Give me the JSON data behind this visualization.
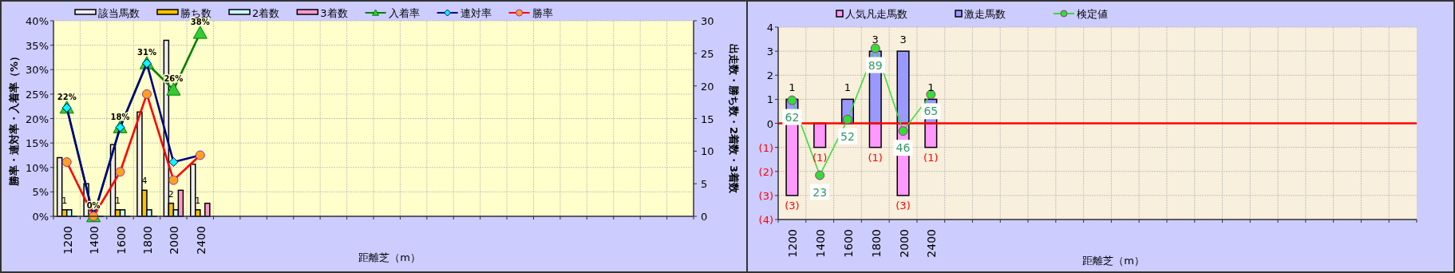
{
  "chart_data": [
    {
      "type": "bar",
      "xlabel": "距離芝（m）",
      "ylabel": "勝率・連対率・入着率（%）",
      "y2label": "出走数・勝ち数・2着数・3着数",
      "categories": [
        "1200",
        "1400",
        "1600",
        "1800",
        "2000",
        "2400",
        null,
        null,
        null,
        null,
        null,
        null,
        null,
        null,
        null,
        null,
        null,
        null,
        null,
        null,
        null,
        null,
        null,
        null
      ],
      "series": [
        {
          "name": "該当馬数",
          "axis": "y2",
          "color": "#eeeeee",
          "values": [
            9,
            5,
            11,
            16,
            27,
            8,
            null,
            null,
            null,
            null,
            null,
            null,
            null,
            null,
            null,
            null,
            null,
            null,
            null,
            null,
            null,
            null,
            null,
            null
          ]
        },
        {
          "name": "勝ち数",
          "axis": "y2",
          "color": "#ffc000",
          "values": [
            1,
            0,
            1,
            4,
            2,
            1,
            null,
            null,
            null,
            null,
            null,
            null,
            null,
            null,
            null,
            null,
            null,
            null,
            null,
            null,
            null,
            null,
            null,
            null
          ],
          "value_labels": [
            "1",
            null,
            "1",
            "4",
            "2",
            "1",
            null,
            null,
            null,
            null,
            null,
            null,
            null,
            null,
            null,
            null,
            null,
            null,
            null,
            null,
            null,
            null,
            null,
            null
          ]
        },
        {
          "name": "2着数",
          "axis": "y2",
          "color": "#ccffff",
          "values": [
            1,
            0,
            1,
            1,
            1,
            0,
            null,
            null,
            null,
            null,
            null,
            null,
            null,
            null,
            null,
            null,
            null,
            null,
            null,
            null,
            null,
            null,
            null,
            null
          ]
        },
        {
          "name": "3着数",
          "axis": "y2",
          "color": "#ff99cc",
          "values": [
            0,
            0,
            0,
            0,
            4,
            2,
            null,
            null,
            null,
            null,
            null,
            null,
            null,
            null,
            null,
            null,
            null,
            null,
            null,
            null,
            null,
            null,
            null,
            null
          ]
        },
        {
          "name": "入着率",
          "type": "line",
          "color": "#008000",
          "marker": "triangle",
          "values": [
            22.2,
            0,
            18.2,
            31.3,
            25.9,
            37.5,
            null,
            null,
            null,
            null,
            null,
            null,
            null,
            null,
            null,
            null,
            null,
            null,
            null,
            null,
            null,
            null,
            null,
            null
          ],
          "value_labels": [
            "22%",
            "0%",
            "18%",
            "31%",
            "26%",
            "38%",
            null,
            null,
            null,
            null,
            null,
            null,
            null,
            null,
            null,
            null,
            null,
            null,
            null,
            null,
            null,
            null,
            null,
            null
          ]
        },
        {
          "name": "連対率",
          "type": "line",
          "color": "#000080",
          "marker": "diamond",
          "values": [
            22.2,
            0,
            18.2,
            31.3,
            11.1,
            12.5,
            null,
            null,
            null,
            null,
            null,
            null,
            null,
            null,
            null,
            null,
            null,
            null,
            null,
            null,
            null,
            null,
            null,
            null
          ]
        },
        {
          "name": "勝率",
          "type": "line",
          "color": "#ff0000",
          "marker": "circle",
          "values": [
            11.1,
            0,
            9.1,
            25,
            7.4,
            12.5,
            null,
            null,
            null,
            null,
            null,
            null,
            null,
            null,
            null,
            null,
            null,
            null,
            null,
            null,
            null,
            null,
            null,
            null
          ]
        }
      ],
      "ylim": [
        0,
        40
      ],
      "yticks": [
        {
          "value": 0,
          "label": "0%"
        },
        {
          "value": 5,
          "label": "5%"
        },
        {
          "value": 10,
          "label": "10%"
        },
        {
          "value": 15,
          "label": "15%"
        },
        {
          "value": 20,
          "label": "20%"
        },
        {
          "value": 25,
          "label": "25%"
        },
        {
          "value": 30,
          "label": "30%"
        },
        {
          "value": 35,
          "label": "35%"
        },
        {
          "value": 40,
          "label": "40%"
        }
      ],
      "y2lim": [
        0,
        30
      ],
      "y2ticks": [
        0,
        5,
        10,
        15,
        20,
        25,
        30
      ],
      "grid": true,
      "legend": "top"
    },
    {
      "type": "bar",
      "xlabel": "距離芝（m）",
      "stacked": true,
      "categories": [
        "1200",
        "1400",
        "1600",
        "1800",
        "2000",
        "2400",
        null,
        null,
        null,
        null,
        null,
        null,
        null,
        null,
        null,
        null,
        null,
        null,
        null,
        null,
        null,
        null,
        null
      ],
      "series": [
        {
          "name": "人気凡走馬数",
          "color": "#ff99ff",
          "values": [
            -3,
            -1,
            0,
            -1,
            -3,
            -1,
            null,
            null,
            null,
            null,
            null,
            null,
            null,
            null,
            null,
            null,
            null,
            null,
            null,
            null,
            null,
            null,
            null
          ],
          "value_labels": [
            "(3)",
            "(1)",
            null,
            "(1)",
            "(3)",
            "(1)",
            null,
            null,
            null,
            null,
            null,
            null,
            null,
            null,
            null,
            null,
            null,
            null,
            null,
            null,
            null,
            null,
            null
          ]
        },
        {
          "name": "激走馬数",
          "color": "#9999ff",
          "values": [
            1,
            0,
            1,
            3,
            3,
            1,
            null,
            null,
            null,
            null,
            null,
            null,
            null,
            null,
            null,
            null,
            null,
            null,
            null,
            null,
            null,
            null,
            null
          ],
          "value_labels": [
            "1",
            null,
            "1",
            "3",
            "3",
            "1",
            null,
            null,
            null,
            null,
            null,
            null,
            null,
            null,
            null,
            null,
            null,
            null,
            null,
            null,
            null,
            null,
            null
          ]
        },
        {
          "name": "検定値",
          "type": "line",
          "axis": "y2",
          "color": "#33dd33",
          "marker": "circle",
          "values": [
            62,
            23,
            52,
            89,
            46,
            65,
            null,
            null,
            null,
            null,
            null,
            null,
            null,
            null,
            null,
            null,
            null,
            null,
            null,
            null,
            null,
            null,
            null
          ],
          "value_labels": [
            "62",
            "23",
            "52",
            "89",
            "46",
            "65",
            null,
            null,
            null,
            null,
            null,
            null,
            null,
            null,
            null,
            null,
            null,
            null,
            null,
            null,
            null,
            null,
            null
          ]
        }
      ],
      "ylim": [
        -4,
        4
      ],
      "yticks": [
        {
          "value": 4,
          "label": "4"
        },
        {
          "value": 3,
          "label": "3"
        },
        {
          "value": 2,
          "label": "2"
        },
        {
          "value": 1,
          "label": "1"
        },
        {
          "value": 0,
          "label": "0"
        },
        {
          "value": -1,
          "label": "(1)"
        },
        {
          "value": -2,
          "label": "(2)"
        },
        {
          "value": -3,
          "label": "(3)"
        },
        {
          "value": -4,
          "label": "(4)"
        }
      ],
      "y2lim": [
        0,
        100
      ],
      "ref_lines": [
        {
          "axis": "y",
          "value": 0,
          "color": "#ff0000"
        }
      ],
      "grid": true,
      "legend": "top"
    }
  ]
}
